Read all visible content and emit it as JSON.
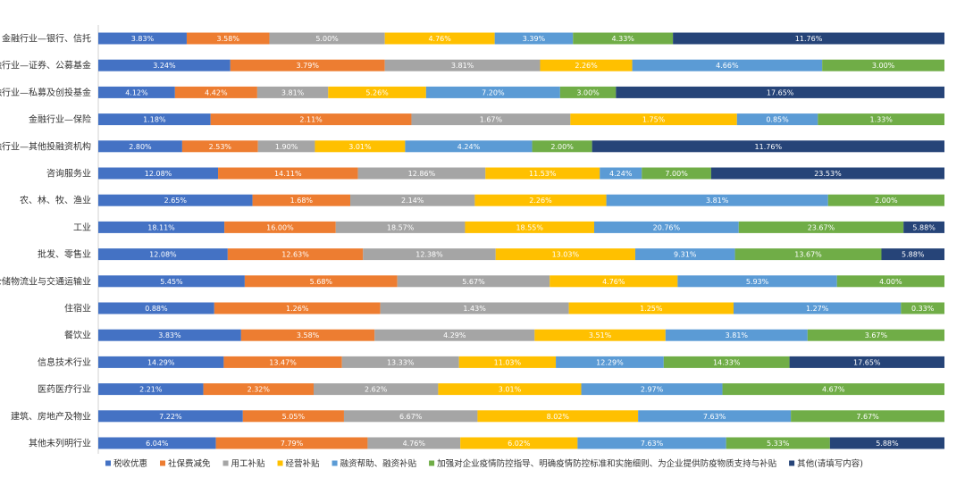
{
  "chart_data": {
    "type": "bar",
    "orientation": "horizontal",
    "stacked": "percent",
    "legend_position": "bottom",
    "grid": false,
    "categories": [
      "金融行业—银行、信托",
      "金融行业—证券、公募基金",
      "金融行业—私募及创投基金",
      "金融行业—保险",
      "金融行业—其他投融资机构",
      "咨询服务业",
      "农、林、牧、渔业",
      "工业",
      "批发、零售业",
      "仓储物流业与交通运输业",
      "住宿业",
      "餐饮业",
      "信息技术行业",
      "医药医疗行业",
      "建筑、房地产及物业",
      "其他未列明行业"
    ],
    "series": [
      {
        "name": "税收优惠",
        "color": "#4472C4",
        "values": [
          3.83,
          3.24,
          4.12,
          1.18,
          2.8,
          12.08,
          2.65,
          18.11,
          12.08,
          5.45,
          0.88,
          3.83,
          14.29,
          2.21,
          7.22,
          6.04
        ],
        "labels": [
          "3.83%",
          "3.24%",
          "4.12%",
          "1.18%",
          "2.80%",
          "12.08%",
          "2.65%",
          "18.11%",
          "12.08%",
          "5.45%",
          "0.88%",
          "3.83%",
          "14.29%",
          "2.21%",
          "7.22%",
          "6.04%"
        ]
      },
      {
        "name": "社保费减免",
        "color": "#ED7D31",
        "values": [
          3.58,
          3.79,
          4.42,
          2.11,
          2.53,
          14.11,
          1.68,
          16.0,
          12.63,
          5.68,
          1.26,
          3.58,
          13.47,
          2.32,
          5.05,
          7.79
        ],
        "labels": [
          "3.58%",
          "3.79%",
          "4.42%",
          "2.11%",
          "2.53%",
          "14.11%",
          "1.68%",
          "16.00%",
          "12.63%",
          "5.68%",
          "1.26%",
          "3.58%",
          "13.47%",
          "2.32%",
          "5.05%",
          "7.79%"
        ]
      },
      {
        "name": "用工补贴",
        "color": "#A5A5A5",
        "values": [
          5.0,
          3.81,
          3.81,
          1.67,
          1.9,
          12.86,
          2.14,
          18.57,
          12.38,
          5.67,
          1.43,
          4.29,
          13.33,
          2.62,
          6.67,
          4.76
        ],
        "labels": [
          "5.00%",
          "3.81%",
          "3.81%",
          "1.67%",
          "1.90%",
          "12.86%",
          "2.14%",
          "18.57%",
          "12.38%",
          "5.67%",
          "1.43%",
          "4.29%",
          "13.33%",
          "2.62%",
          "6.67%",
          "4.76%"
        ]
      },
      {
        "name": "经营补贴",
        "color": "#FFC000",
        "values": [
          4.76,
          2.26,
          5.26,
          1.75,
          3.01,
          11.53,
          2.26,
          18.55,
          13.03,
          4.76,
          1.25,
          3.51,
          11.03,
          3.01,
          8.02,
          6.02
        ],
        "labels": [
          "4.76%",
          "2.26%",
          "5.26%",
          "1.75%",
          "3.01%",
          "11.53%",
          "2.26%",
          "18.55%",
          "13.03%",
          "4.76%",
          "1.25%",
          "3.51%",
          "11.03%",
          "3.01%",
          "8.02%",
          "6.02%"
        ]
      },
      {
        "name": "融资帮助、融资补贴",
        "color": "#5B9BD5",
        "values": [
          3.39,
          4.66,
          7.2,
          0.85,
          4.24,
          4.24,
          3.81,
          20.76,
          9.31,
          5.93,
          1.27,
          3.81,
          12.29,
          2.97,
          7.63,
          7.63
        ],
        "labels": [
          "3.39%",
          "4.66%",
          "7.20%",
          "0.85%",
          "4.24%",
          "4.24%",
          "3.81%",
          "20.76%",
          "9.31%",
          "5.93%",
          "1.27%",
          "3.81%",
          "12.29%",
          "2.97%",
          "7.63%",
          "7.63%"
        ]
      },
      {
        "name": "加强对企业疫情防控指导、明确疫情防控标准和实施细则、为企业提供防疫物质支持与补贴",
        "color": "#70AD47",
        "values": [
          4.33,
          3.0,
          3.0,
          1.33,
          2.0,
          7.0,
          2.0,
          23.67,
          13.67,
          4.0,
          0.33,
          3.67,
          14.33,
          4.67,
          7.67,
          5.33
        ],
        "labels": [
          "4.33%",
          "3.00%",
          "3.00%",
          "1.33%",
          "2.00%",
          "7.00%",
          "2.00%",
          "23.67%",
          "13.67%",
          "4.00%",
          "0.33%",
          "3.67%",
          "14.33%",
          "4.67%",
          "7.67%",
          "5.33%"
        ]
      },
      {
        "name": "其他(请填写内容)",
        "color": "#264478",
        "values": [
          11.76,
          0,
          17.65,
          0,
          11.76,
          23.53,
          0,
          5.88,
          5.88,
          0,
          0,
          0,
          17.65,
          0,
          0,
          5.88
        ],
        "labels": [
          "11.76%",
          "",
          "17.65%",
          "",
          "11.76%",
          "23.53%",
          "",
          "5.88%",
          "5.88%",
          "",
          "",
          "",
          "17.65%",
          "",
          "",
          "5.88%"
        ]
      }
    ]
  }
}
